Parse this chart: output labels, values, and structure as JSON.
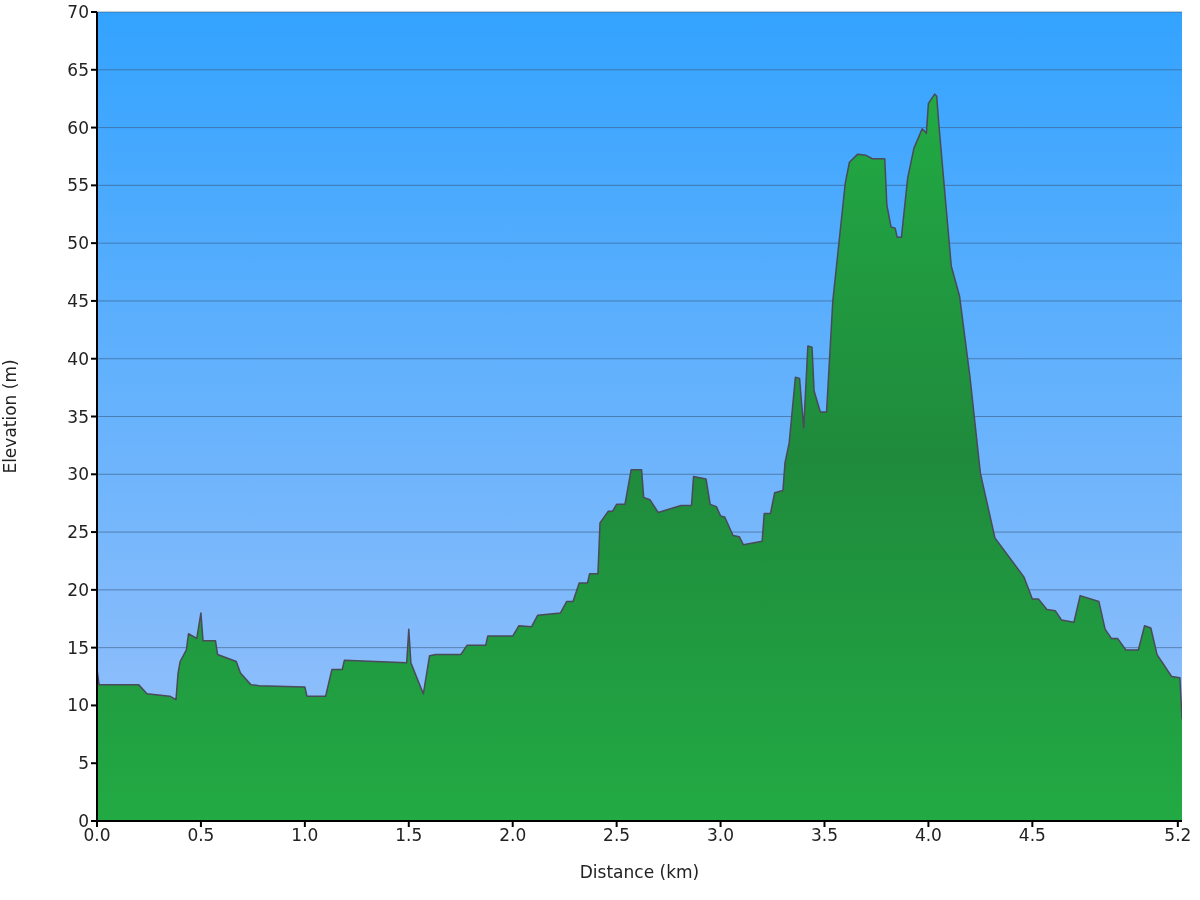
{
  "chart_data": {
    "type": "area",
    "xlabel": "Distance   (km)",
    "ylabel": "Elevation (m)",
    "x": [
      0.0,
      0.01,
      0.11,
      0.2,
      0.24,
      0.35,
      0.38,
      0.39,
      0.4,
      0.43,
      0.44,
      0.48,
      0.5,
      0.51,
      0.57,
      0.58,
      0.67,
      0.69,
      0.74,
      0.78,
      1.0,
      1.01,
      1.1,
      1.13,
      1.18,
      1.19,
      1.49,
      1.5,
      1.51,
      1.57,
      1.6,
      1.63,
      1.75,
      1.78,
      1.87,
      1.88,
      2.0,
      2.03,
      2.09,
      2.12,
      2.23,
      2.26,
      2.29,
      2.32,
      2.36,
      2.37,
      2.41,
      2.42,
      2.46,
      2.48,
      2.5,
      2.54,
      2.57,
      2.62,
      2.63,
      2.66,
      2.7,
      2.81,
      2.86,
      2.87,
      2.93,
      2.95,
      2.98,
      3.0,
      3.02,
      3.06,
      3.09,
      3.11,
      3.2,
      3.21,
      3.24,
      3.26,
      3.3,
      3.31,
      3.33,
      3.36,
      3.38,
      3.4,
      3.42,
      3.44,
      3.45,
      3.48,
      3.51,
      3.54,
      3.57,
      3.6,
      3.62,
      3.66,
      3.7,
      3.73,
      3.79,
      3.8,
      3.82,
      3.84,
      3.85,
      3.87,
      3.9,
      3.93,
      3.97,
      3.99,
      4.0,
      4.03,
      4.04,
      4.05,
      4.11,
      4.15,
      4.2,
      4.25,
      4.29,
      4.32,
      4.46,
      4.5,
      4.53,
      4.57,
      4.61,
      4.64,
      4.7,
      4.73,
      4.82,
      4.85,
      4.88,
      4.91,
      4.95,
      5.01,
      5.04,
      5.07,
      5.1,
      5.17,
      5.21,
      5.22
    ],
    "series": [
      {
        "color": "#22aa44",
        "values": [
          13.1,
          11.8,
          11.8,
          11.8,
          11.0,
          10.8,
          10.5,
          12.8,
          13.8,
          14.8,
          16.2,
          15.8,
          18.0,
          15.6,
          15.6,
          14.4,
          13.8,
          12.8,
          11.8,
          11.7,
          11.6,
          10.8,
          10.8,
          13.1,
          13.1,
          13.9,
          13.7,
          16.6,
          13.7,
          11.0,
          14.3,
          14.4,
          14.4,
          15.2,
          15.2,
          16.0,
          16.0,
          16.9,
          16.8,
          17.8,
          18.0,
          19.0,
          19.0,
          20.6,
          20.6,
          21.4,
          21.4,
          25.8,
          26.8,
          26.8,
          27.4,
          27.4,
          30.4,
          30.4,
          28.0,
          27.8,
          26.7,
          27.3,
          27.3,
          29.8,
          29.6,
          27.4,
          27.2,
          26.4,
          26.3,
          24.7,
          24.6,
          23.9,
          24.2,
          26.6,
          26.6,
          28.4,
          28.6,
          31.0,
          32.7,
          38.4,
          38.3,
          34.0,
          41.1,
          41.0,
          37.2,
          35.4,
          35.4,
          45.0,
          50.1,
          55.2,
          57.0,
          57.7,
          57.6,
          57.3,
          57.3,
          53.3,
          51.4,
          51.3,
          50.5,
          50.5,
          55.6,
          58.2,
          59.9,
          59.5,
          62.1,
          62.9,
          62.7,
          60.3,
          48.0,
          45.4,
          38.4,
          30.1,
          26.9,
          24.5,
          21.1,
          19.2,
          19.2,
          18.3,
          18.2,
          17.4,
          17.2,
          19.5,
          19.0,
          16.6,
          15.8,
          15.8,
          14.8,
          14.8,
          16.9,
          16.7,
          14.4,
          12.5,
          12.4,
          8.8
        ]
      }
    ],
    "xlim": [
      0,
      5.22
    ],
    "xticks": [
      {
        "value": 0,
        "label": "0.0"
      },
      0.5,
      {
        "value": 1,
        "label": "1.0"
      },
      1.5,
      {
        "value": 2,
        "label": "2.0"
      },
      2.5,
      {
        "value": 3,
        "label": "3.0"
      },
      3.5,
      {
        "value": 4,
        "label": "4.0"
      },
      4.5,
      5.2
    ],
    "ylim": [
      0,
      70
    ],
    "yticks": [
      0,
      5,
      10,
      15,
      20,
      25,
      30,
      35,
      40,
      45,
      50,
      55,
      60,
      65,
      70
    ],
    "grid": "y",
    "legend": false
  }
}
